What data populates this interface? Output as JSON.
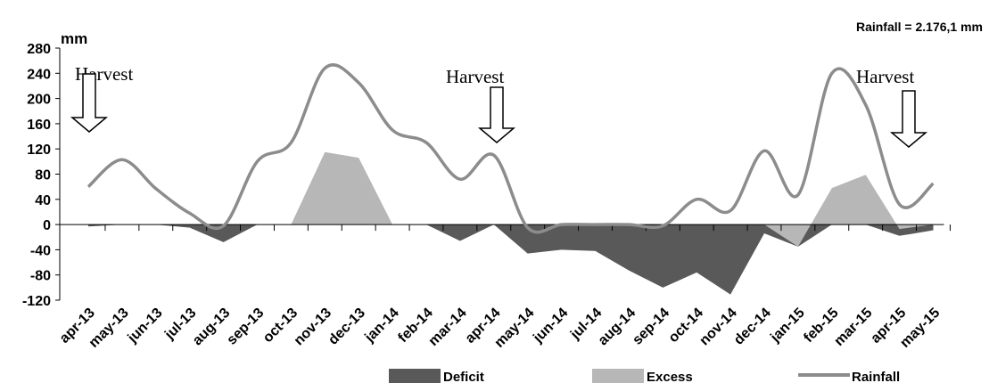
{
  "chart_data": {
    "type": "line",
    "title": "",
    "total_text": "Rainfall = 2.176,1 mm",
    "ylabel": "mm",
    "xlabel": "",
    "ylim": [
      -120,
      280
    ],
    "yticks": [
      -120,
      -80,
      -40,
      0,
      40,
      80,
      120,
      160,
      200,
      240,
      280
    ],
    "ytick_labels": [
      "-120",
      "-80",
      "-40",
      "0",
      "40",
      "80",
      "120",
      "160",
      "200",
      "240",
      "280"
    ],
    "categories": [
      "apr-13",
      "may-13",
      "jun-13",
      "jul-13",
      "aug-13",
      "sep-13",
      "oct-13",
      "nov-13",
      "dec-13",
      "jan-14",
      "feb-14",
      "mar-14",
      "apr-14",
      "may-14",
      "jun-14",
      "jul-14",
      "aug-14",
      "sep-14",
      "oct-14",
      "nov-14",
      "dec-14",
      "jan-15",
      "feb-15",
      "mar-15",
      "apr-15",
      "may-15"
    ],
    "series": [
      {
        "name": "Deficit",
        "kind": "area",
        "color": "#595959",
        "values": [
          -3,
          0,
          0,
          -5,
          -28,
          0,
          0,
          0,
          0,
          0,
          0,
          -26,
          0,
          -46,
          -40,
          -42,
          -73,
          -100,
          -76,
          -111,
          -14,
          -35,
          0,
          0,
          -18,
          -9
        ]
      },
      {
        "name": "Excess",
        "kind": "area",
        "color": "#b7b7b7",
        "values": [
          0,
          0,
          0,
          0,
          0,
          0,
          0,
          115,
          106,
          0,
          0,
          0,
          0,
          0,
          0,
          0,
          0,
          0,
          0,
          0,
          0,
          -35,
          58,
          79,
          -7,
          0
        ]
      },
      {
        "name": "Rainfall",
        "kind": "line",
        "color": "#8c8c8c",
        "values": [
          60,
          103,
          57,
          18,
          -2,
          100,
          130,
          248,
          225,
          150,
          130,
          72,
          110,
          -5,
          0,
          0,
          0,
          -2,
          40,
          22,
          117,
          47,
          240,
          190,
          32,
          65
        ]
      }
    ],
    "harvest_label": "Harvest",
    "harvest_markers": [
      {
        "label": "Harvest",
        "at_index": 0
      },
      {
        "label": "Harvest",
        "at_index": 12
      },
      {
        "label": "Harvest",
        "at_index": 24
      }
    ],
    "legend": [
      "Deficit",
      "Excess",
      "Rainfall"
    ],
    "legend_position": "bottom",
    "grid": false
  }
}
